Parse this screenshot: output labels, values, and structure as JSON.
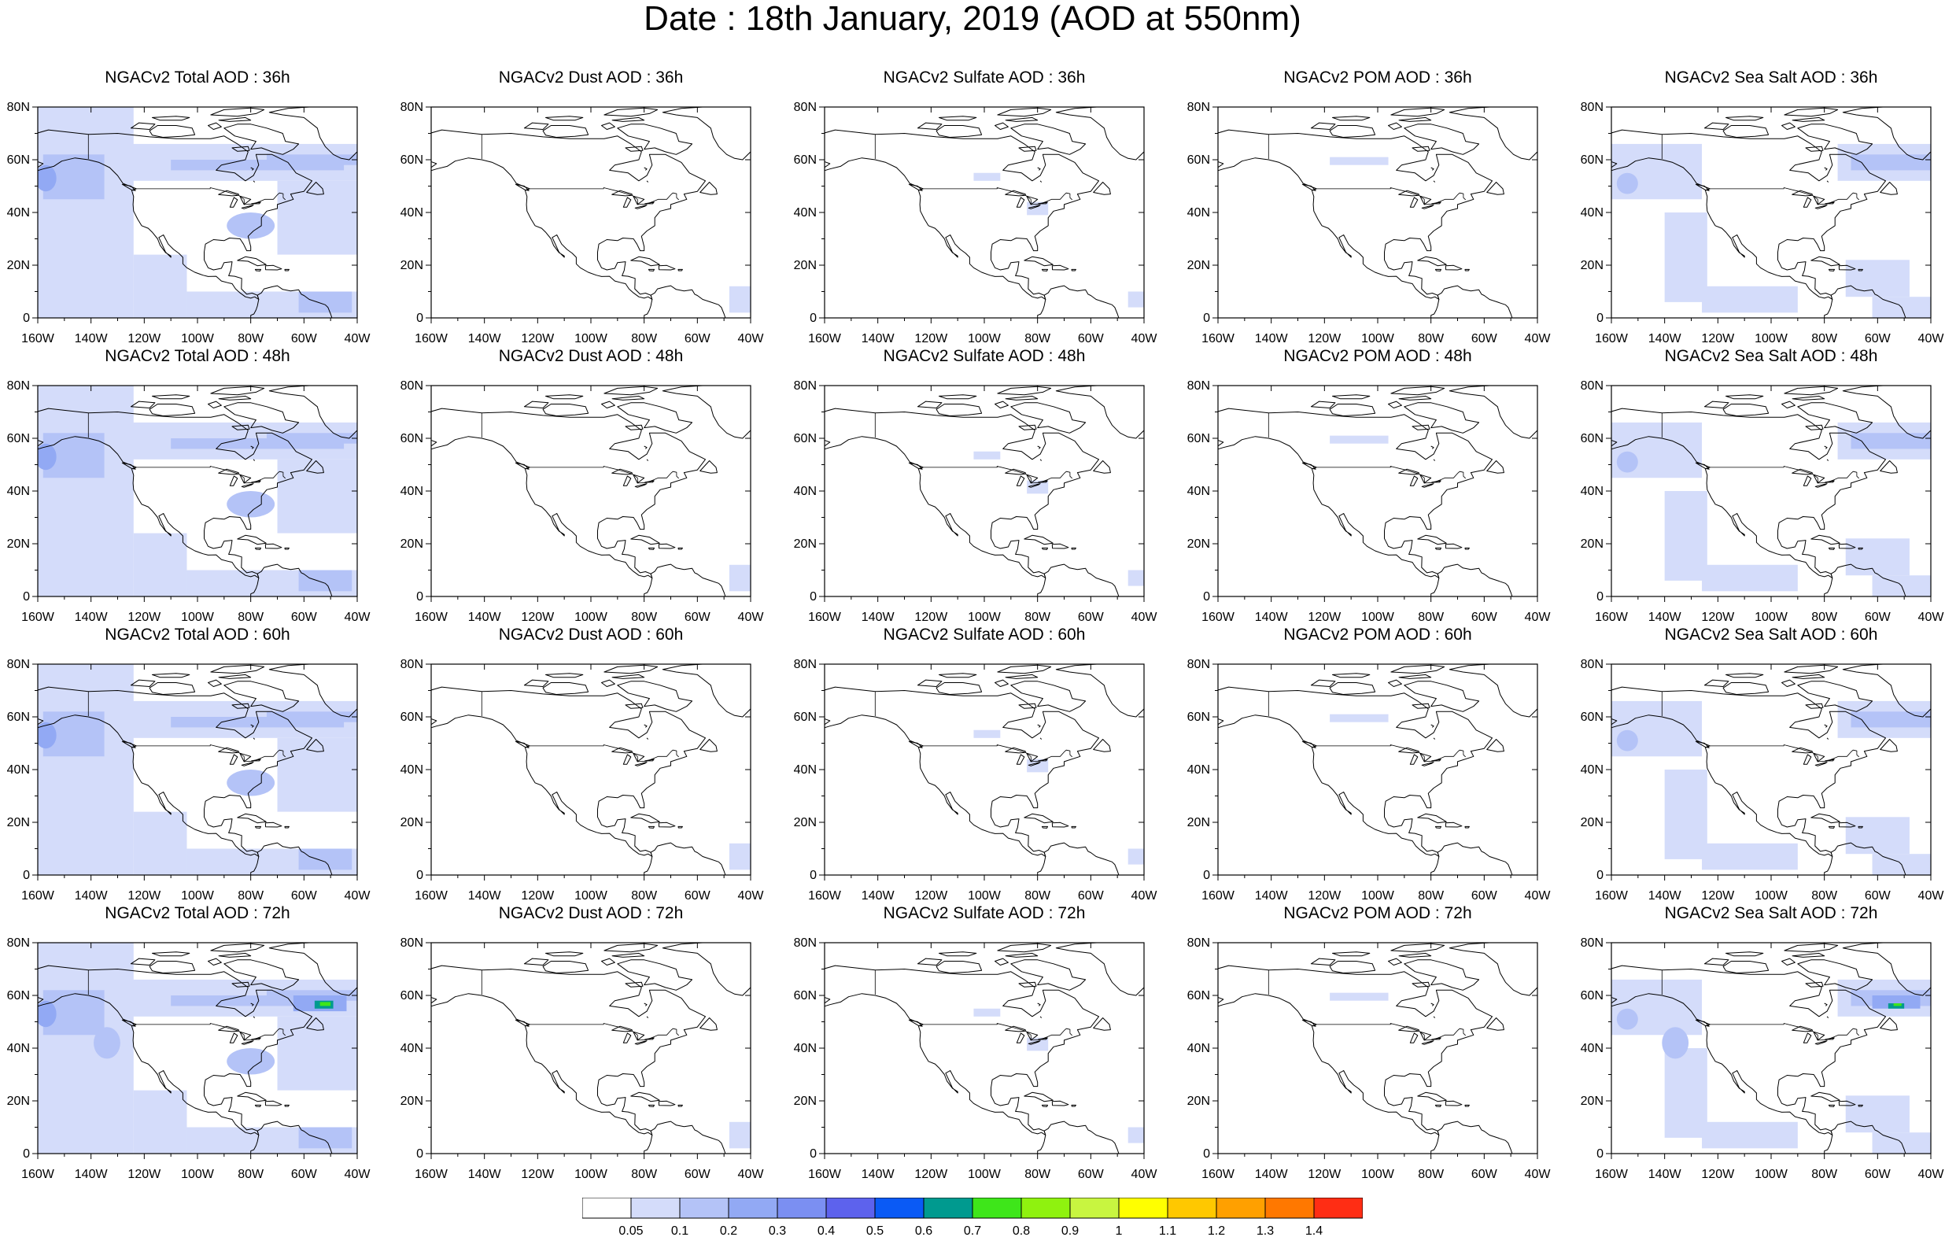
{
  "title": "Date : 18th January, 2019 (AOD at 550nm)",
  "lat_labels": [
    "80N",
    "60N",
    "40N",
    "20N",
    "0"
  ],
  "lon_labels": [
    "160W",
    "140W",
    "120W",
    "100W",
    "80W",
    "60W",
    "40W"
  ],
  "colors": {
    "coast": "#000000",
    "aerosol_light": "#d4dcfa",
    "aerosol_medium": "#b4c3f7",
    "aerosol_strong": "#92a9f4",
    "hotspot_teal": "#009a8f",
    "hotspot_green": "#3ee61a"
  },
  "rows": [
    {
      "panels": [
        {
          "title": "NGACv2 Total AOD : 36h",
          "fill_level": "high"
        },
        {
          "title": "NGACv2 Dust AOD : 36h",
          "fill_level": "dust"
        },
        {
          "title": "NGACv2 Sulfate AOD : 36h",
          "fill_level": "sulfate"
        },
        {
          "title": "NGACv2 POM AOD : 36h",
          "fill_level": "minimal"
        },
        {
          "title": "NGACv2 Sea Salt AOD : 36h",
          "fill_level": "seasalt"
        }
      ]
    },
    {
      "panels": [
        {
          "title": "NGACv2 Total AOD : 48h",
          "fill_level": "high"
        },
        {
          "title": "NGACv2 Dust AOD : 48h",
          "fill_level": "dust"
        },
        {
          "title": "NGACv2 Sulfate AOD : 48h",
          "fill_level": "sulfate"
        },
        {
          "title": "NGACv2 POM AOD : 48h",
          "fill_level": "minimal"
        },
        {
          "title": "NGACv2 Sea Salt AOD : 48h",
          "fill_level": "seasalt"
        }
      ]
    },
    {
      "panels": [
        {
          "title": "NGACv2 Total AOD : 60h",
          "fill_level": "high"
        },
        {
          "title": "NGACv2 Dust AOD : 60h",
          "fill_level": "dust"
        },
        {
          "title": "NGACv2 Sulfate AOD : 60h",
          "fill_level": "sulfate"
        },
        {
          "title": "NGACv2 POM AOD : 60h",
          "fill_level": "minimal"
        },
        {
          "title": "NGACv2 Sea Salt AOD : 60h",
          "fill_level": "seasalt"
        }
      ]
    },
    {
      "panels": [
        {
          "title": "NGACv2 Total AOD : 72h",
          "fill_level": "high_hotspot"
        },
        {
          "title": "NGACv2 Dust AOD : 72h",
          "fill_level": "dust"
        },
        {
          "title": "NGACv2 Sulfate AOD : 72h",
          "fill_level": "sulfate"
        },
        {
          "title": "NGACv2 POM AOD : 72h",
          "fill_level": "minimal"
        },
        {
          "title": "NGACv2 Sea Salt  AOD : 72h",
          "fill_level": "seasalt_hotspot"
        }
      ]
    }
  ],
  "colorbar": {
    "labels": [
      "0.05",
      "0.1",
      "0.2",
      "0.3",
      "0.4",
      "0.5",
      "0.6",
      "0.7",
      "0.8",
      "0.9",
      "1",
      "1.1",
      "1.2",
      "1.3",
      "1.4"
    ],
    "colors": [
      "#ffffff",
      "#d4dcfa",
      "#b4c3f7",
      "#92a9f4",
      "#7b8ff2",
      "#5d62ed",
      "#0a5af5",
      "#009a8f",
      "#3ee61a",
      "#8ff20f",
      "#c8f540",
      "#ffff00",
      "#ffc800",
      "#ffa000",
      "#ff7800",
      "#ff2d14"
    ]
  }
}
